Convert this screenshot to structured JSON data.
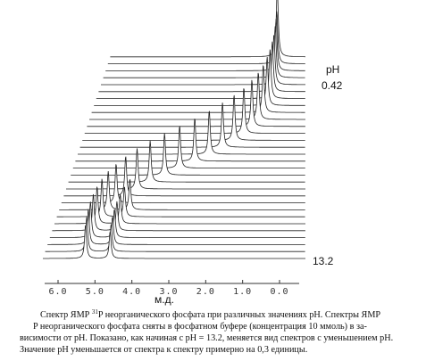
{
  "figure": {
    "x_axis": {
      "ticks": [
        "6.0",
        "5.0",
        "4.0",
        "3.0",
        "2.0",
        "1.0",
        "0.0"
      ],
      "label": "м.д."
    },
    "ph_label": "pH",
    "top_value": "0.42",
    "bottom_value": "13.2"
  },
  "caption": {
    "line1": {
      "before": "Спектр ЯМР ",
      "superscript": "31",
      "after": "P неорганического фосфата при различных значениях pH. Спектры ЯМР"
    },
    "line2": "P   неорганического фосфата сняты в фосфатном буфере (концентрация 10 ммоль) в за-",
    "line3": "висимости от pH. Показано, как начиная с pH = 13.2, меняется вид спектров с уменьшением pH.",
    "line4": "Значение pH уменьшается от спектра к спектру примерно на 0,3 единицы."
  }
}
